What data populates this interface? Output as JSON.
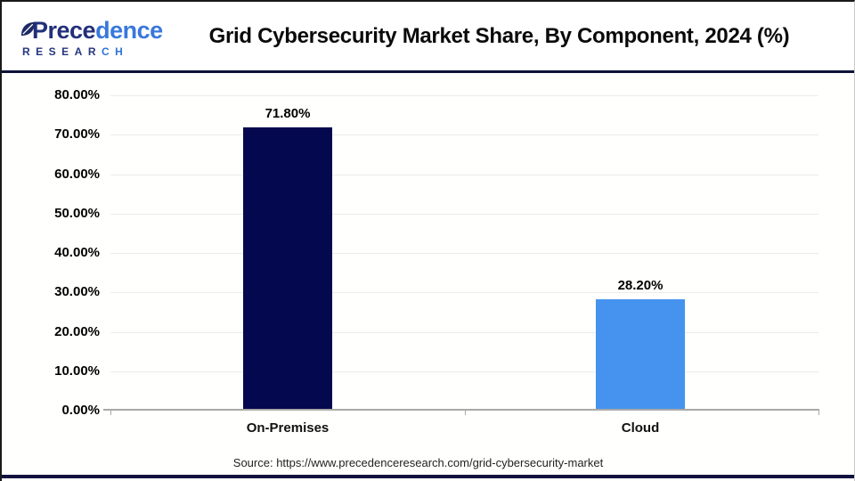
{
  "header": {
    "logo": {
      "name_part1": "Prece",
      "name_part2": "dence",
      "subtitle_part1": "RESEAR",
      "subtitle_part2": "CH",
      "leaf_icon": "leaf-icon"
    },
    "title": "Grid Cybersecurity Market Share, By Component, 2024 (%)"
  },
  "chart_data": {
    "type": "bar",
    "title": "Grid Cybersecurity Market Share, By Component, 2024 (%)",
    "categories": [
      "On-Premises",
      "Cloud"
    ],
    "values": [
      71.8,
      28.2
    ],
    "value_labels": [
      "71.80%",
      "28.20%"
    ],
    "bar_colors": [
      "#03084f",
      "#4593ef"
    ],
    "xlabel": "",
    "ylabel": "",
    "ylim": [
      0,
      80
    ],
    "ytick_step": 10,
    "yticks": [
      "80.00%",
      "70.00%",
      "60.00%",
      "50.00%",
      "40.00%",
      "30.00%",
      "20.00%",
      "10.00%",
      "0.00%"
    ],
    "grid": true,
    "legend": "none"
  },
  "footer": {
    "source": "Source: https://www.precedenceresearch.com/grid-cybersecurity-market"
  },
  "colors": {
    "bar_on_premises": "#03084f",
    "bar_cloud": "#4593ef",
    "header_divider": "#0d1238",
    "bottom_strip": "#12123f",
    "logo_navy": "#22307a",
    "logo_blue": "#3878dc",
    "gridline": "#ececec",
    "axis_line": "#a9a9a9"
  }
}
